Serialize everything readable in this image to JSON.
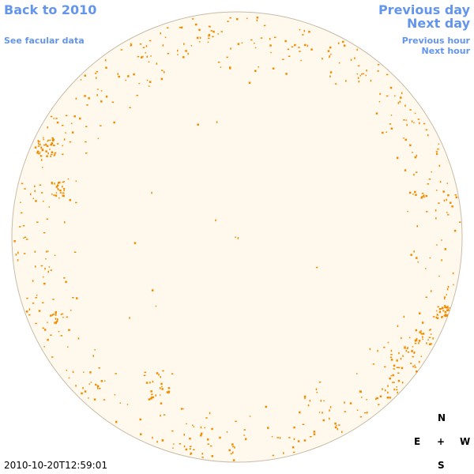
{
  "nav": {
    "back_label": "Back to 2010",
    "facular_label": "See facular data",
    "prev_day_label": "Previous day",
    "next_day_label": "Next day",
    "prev_hour_label": "Previous hour",
    "next_hour_label": "Next hour"
  },
  "compass": {
    "north": "N",
    "east": "E",
    "center": "+",
    "west": "W",
    "south": "S"
  },
  "timestamp": "2010-10-20T12:59:01",
  "colors": {
    "link": "#6495ed",
    "disk_fill": "#fff8ec",
    "disk_edge": "#c8bca8",
    "facula": "#f08c00"
  }
}
